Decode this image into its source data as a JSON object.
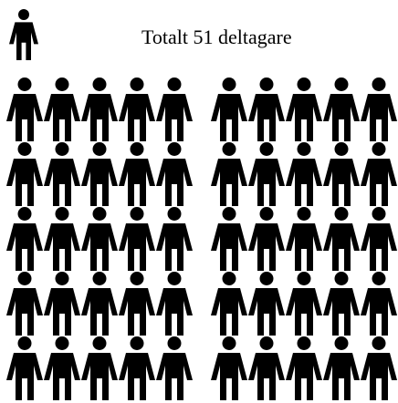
{
  "chart_data": {
    "type": "pictograph",
    "title": "Totalt 51 deltagare",
    "value": 51,
    "color": "#000000"
  }
}
